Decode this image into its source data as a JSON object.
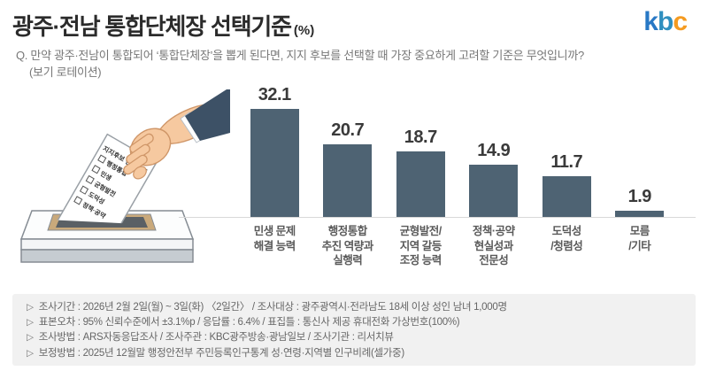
{
  "header": {
    "title": "광주·전남 통합단체장 선택기준",
    "title_unit": "(%)",
    "logo": "kbc"
  },
  "question": {
    "line1": "Q. 만약 광주·전남이 통합되어 ‘통합단체장’을 뽑게 된다면, 지지 후보를 선택할 때 가장 중요하게 고려할 기준은 무엇입니까?",
    "line2": "(보기 로테이션)"
  },
  "illustration": {
    "ballot_title": "지지후보 선택기준",
    "ballot_items": [
      "행정통합",
      "민생",
      "균형발전",
      "도덕성",
      "정책·공약"
    ]
  },
  "chart_data": {
    "type": "bar",
    "title": "광주·전남 통합단체장 선택기준 (%)",
    "categories": [
      "민생 문제\n해결 능력",
      "행정통합\n추진 역량과\n실행력",
      "균형발전/\n지역 갈등\n조정 능력",
      "정책·공약\n현실성과\n전문성",
      "도덕성\n/청렴성",
      "모름\n/기타"
    ],
    "values": [
      32.1,
      20.7,
      18.7,
      14.9,
      11.7,
      1.9
    ],
    "unit": "%",
    "bar_color": "#4e6373",
    "value_labels": true,
    "grid": false,
    "ylim": [
      0,
      35
    ],
    "legend": "none"
  },
  "footer": {
    "marker": "▷",
    "lines": [
      "조사기간 : 2026년 2월 2일(월) ~ 3일(화) 〈2일간〉 / 조사대상 : 광주광역시·전라남도 18세 이상 성인 남녀 1,000명",
      "표본오차 : 95% 신뢰수준에서 ±3.1%p / 응답률 : 6.4% / 표집틀 : 통신사 제공 휴대전화 가상번호(100%)",
      "조사방법 : ARS자동응답조사 / 조사주관 : KBC광주방송·광남일보 / 조사기관 : 리서치뷰",
      "보정방법 : 2025년 12월말 행정안전부 주민등록인구통계 성·연령·지역별 인구비례(셀가중)"
    ]
  },
  "colors": {
    "bar": "#4e6373",
    "axis_line": "#d8d8d8",
    "logo_letters": [
      "#2878c5",
      "#2f8fbf",
      "#f59b20"
    ],
    "sleeve": "#3d5166",
    "skin": "#f6c9a0",
    "skin_outline": "#cf9668",
    "slot_frame": "#c9a97b",
    "slot_dark": "#5a6065",
    "footer_bg": "#f1f1f1"
  }
}
